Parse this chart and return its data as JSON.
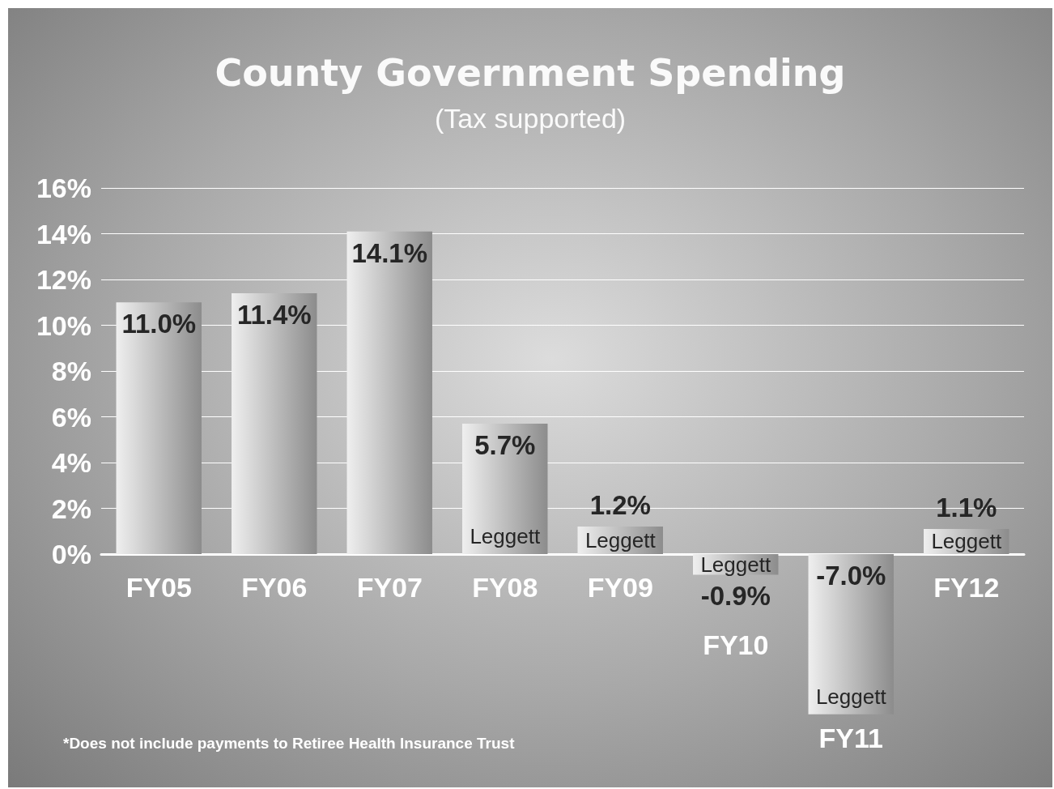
{
  "chart_data": {
    "type": "bar",
    "title": "County Government Spending",
    "subtitle": "(Tax supported)",
    "categories": [
      "FY05",
      "FY06",
      "FY07",
      "FY08",
      "FY09",
      "FY10",
      "FY11",
      "FY12"
    ],
    "values": [
      11.0,
      11.4,
      14.1,
      5.7,
      1.2,
      -0.9,
      -7.0,
      1.1
    ],
    "value_labels": [
      "11.0%",
      "11.4%",
      "14.1%",
      "5.7%",
      "1.2%",
      "-0.9%",
      "-7.0%",
      "1.1%"
    ],
    "color": "#8c8c8c",
    "ylim": [
      -7,
      16
    ],
    "yticks": [
      {
        "value": 0,
        "label": "0%"
      },
      {
        "value": 2,
        "label": "2%"
      },
      {
        "value": 4,
        "label": "4%"
      },
      {
        "value": 6,
        "label": "6%"
      },
      {
        "value": 8,
        "label": "8%"
      },
      {
        "value": 10,
        "label": "10%"
      },
      {
        "value": 12,
        "label": "12%"
      },
      {
        "value": 14,
        "label": "14%"
      },
      {
        "value": 16,
        "label": "16%"
      }
    ],
    "grid": "y",
    "annotations": [
      "Leggett",
      "Leggett",
      "Leggett",
      "Leggett",
      "Leggett",
      "*Does not include payments to Retiree Health Insurance Trust"
    ]
  }
}
